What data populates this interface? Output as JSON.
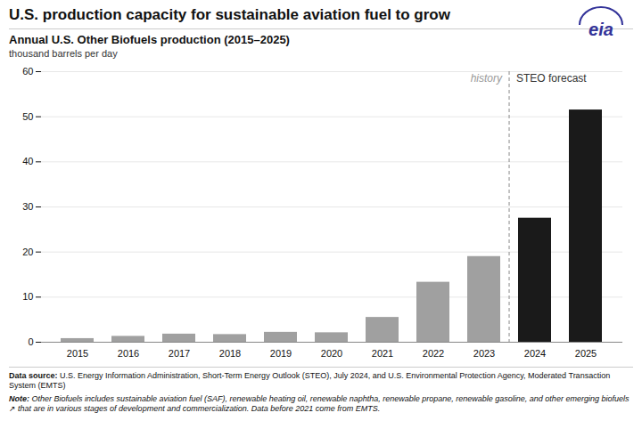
{
  "chart_data": {
    "type": "bar",
    "title": "U.S. production capacity for sustainable aviation fuel to grow",
    "subtitle": "Annual U.S. Other Biofuels production (2015–2025)",
    "ylabel": "thousand barrels per day",
    "categories": [
      "2015",
      "2016",
      "2017",
      "2018",
      "2019",
      "2020",
      "2021",
      "2022",
      "2023",
      "2024",
      "2025"
    ],
    "values": [
      0.8,
      1.3,
      1.8,
      1.7,
      2.2,
      2.1,
      5.5,
      13.3,
      19.0,
      27.5,
      51.5
    ],
    "colors": [
      "#a0a0a0",
      "#a0a0a0",
      "#a0a0a0",
      "#a0a0a0",
      "#a0a0a0",
      "#a0a0a0",
      "#a0a0a0",
      "#a0a0a0",
      "#a0a0a0",
      "#1a1a1a",
      "#1a1a1a"
    ],
    "ylim": [
      0,
      60
    ],
    "yticks": [
      0,
      10,
      20,
      30,
      40,
      50,
      60
    ],
    "grid": true,
    "annotations": [
      {
        "text": "history",
        "category": "2023",
        "color": "#999999"
      },
      {
        "text": "STEO forecast",
        "category": "2024",
        "color": "#333333"
      }
    ],
    "logo": {
      "text": "eia",
      "color": "#333399"
    },
    "footer": [
      {
        "bold": "Data source:",
        "text": " U.S. Energy Information Administration, Short-Term Energy Outlook (STEO), July 2024, and U.S. Environmental Protection Agency, Moderated Transaction System (EMTS)"
      },
      {
        "bold": "Note:",
        "text": " Other Biofuels includes sustainable aviation fuel (SAF), renewable heating oil, renewable naphtha, renewable propane, renewable gasoline, and other emerging biofuels ↗ that are in various stages of development and commercialization. Data before 2021 come from EMTS."
      }
    ]
  }
}
